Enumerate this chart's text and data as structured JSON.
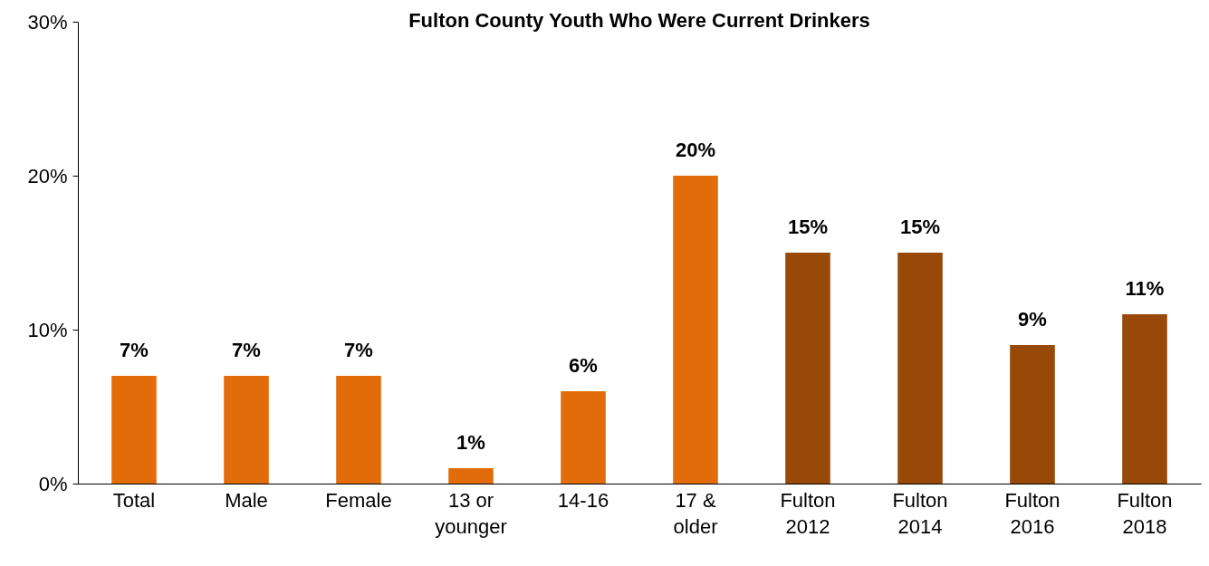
{
  "chart_data": {
    "type": "bar",
    "title": "Fulton County Youth Who Were Current Drinkers",
    "categories": [
      "Total",
      "Male",
      "Female",
      "13 or younger",
      "14-16",
      "17 & older",
      "Fulton 2012",
      "Fulton 2014",
      "Fulton 2016",
      "Fulton 2018"
    ],
    "values": [
      7,
      7,
      7,
      1,
      6,
      20,
      15,
      15,
      9,
      11
    ],
    "colors": [
      "#e36c0a",
      "#e36c0a",
      "#e36c0a",
      "#e36c0a",
      "#e36c0a",
      "#e36c0a",
      "#984807",
      "#984807",
      "#984807",
      "#984807"
    ],
    "value_labels": [
      "7%",
      "7%",
      "7%",
      "1%",
      "6%",
      "20%",
      "15%",
      "15%",
      "9%",
      "11%"
    ],
    "ylim": [
      0,
      30
    ],
    "yticks": [
      {
        "value": 0,
        "label": "0%"
      },
      {
        "value": 10,
        "label": "10%"
      },
      {
        "value": 20,
        "label": "20%"
      },
      {
        "value": 30,
        "label": "30%"
      }
    ],
    "grid": false
  }
}
